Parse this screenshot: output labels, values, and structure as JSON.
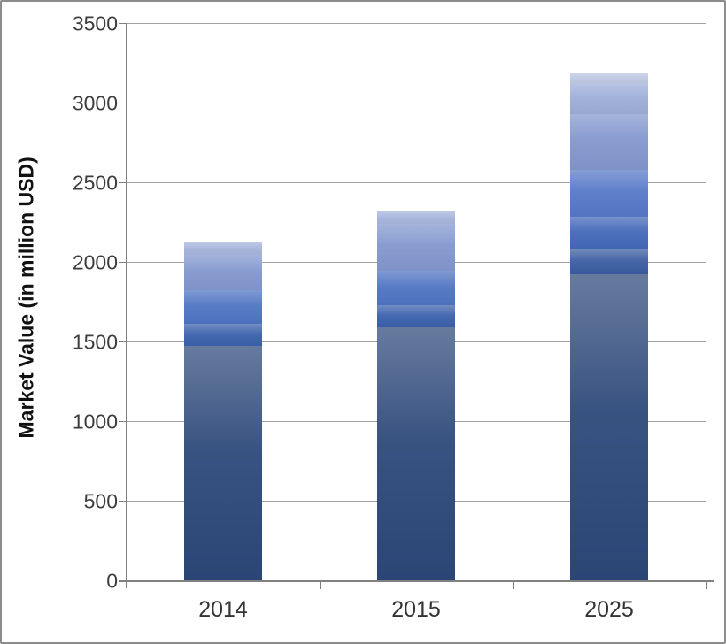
{
  "chart_data": {
    "type": "bar",
    "stacked": true,
    "title": "",
    "xlabel": "",
    "ylabel": "Market Value (in million USD)",
    "categories": [
      "2014",
      "2015",
      "2025"
    ],
    "ylim": [
      0,
      3500
    ],
    "ytick_step": 500,
    "grid": true,
    "legend_position": "none",
    "bars": [
      {
        "category": "2014",
        "total": 2125,
        "segments": [
          {
            "value": 1470,
            "color": "#2C4879"
          },
          {
            "value": 140,
            "color": "#3B61AC"
          },
          {
            "value": 215,
            "color": "#4F74C2"
          },
          {
            "value": 220,
            "color": "#8297CE"
          },
          {
            "value": 80,
            "color": "#A6B4DC"
          }
        ]
      },
      {
        "category": "2015",
        "total": 2315,
        "segments": [
          {
            "value": 1590,
            "color": "#2C4879"
          },
          {
            "value": 140,
            "color": "#3B61AC"
          },
          {
            "value": 215,
            "color": "#4F74C2"
          },
          {
            "value": 295,
            "color": "#8297CE"
          },
          {
            "value": 75,
            "color": "#A6B4DC"
          }
        ]
      },
      {
        "category": "2025",
        "total": 3190,
        "segments": [
          {
            "value": 1920,
            "color": "#2C4879"
          },
          {
            "value": 160,
            "color": "#3A5CA0"
          },
          {
            "value": 205,
            "color": "#4268B8"
          },
          {
            "value": 295,
            "color": "#5578C7"
          },
          {
            "value": 350,
            "color": "#8297CE"
          },
          {
            "value": 195,
            "color": "#9DAED8"
          },
          {
            "value": 65,
            "color": "#BFC9E3"
          }
        ]
      }
    ],
    "colors": {
      "grid_color": "#A3A3A3",
      "axis_color": "#808080",
      "tick_label_color": "#3D3D3D",
      "category_label_color": "#333333",
      "axis_title_color": "#111111",
      "frame_border_color": "#8C8C8C",
      "background": "#FFFFFF"
    }
  }
}
